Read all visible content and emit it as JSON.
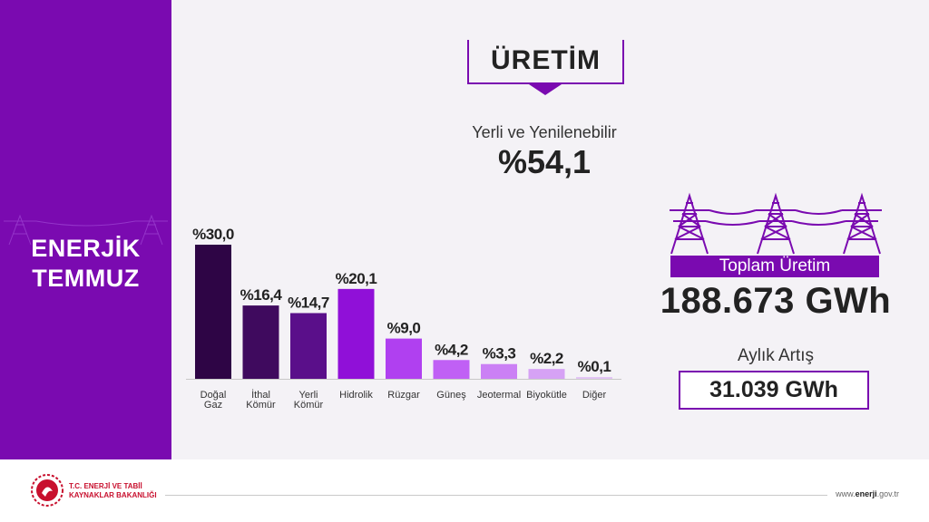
{
  "sidebar": {
    "title_line1": "ENERJİK",
    "title_line2": "TEMMUZ"
  },
  "header": {
    "title": "ÜRETİM"
  },
  "share": {
    "label": "Yerli ve Yenilenebilir",
    "value": "%54,1"
  },
  "total": {
    "label": "Toplam Üretim",
    "value": "188.673 GWh"
  },
  "increase": {
    "label": "Aylık Artış",
    "value": "31.039 GWh"
  },
  "footer": {
    "ministry_line1": "T.C. ENERJİ VE TABİİ",
    "ministry_line2": "KAYNAKLAR BAKANLIĞI",
    "url_prefix": "www.",
    "url_bold": "enerji",
    "url_suffix": ".gov.tr"
  },
  "colors": {
    "accent": "#7a0ab0",
    "ministry_red": "#c8102e"
  },
  "chart_data": {
    "type": "bar",
    "categories": [
      [
        "Doğal",
        "Gaz"
      ],
      [
        "İthal",
        "Kömür"
      ],
      [
        "Yerli",
        "Kömür"
      ],
      [
        "Hidrolik"
      ],
      [
        "Rüzgar"
      ],
      [
        "Güneş"
      ],
      [
        "Jeotermal"
      ],
      [
        "Biyokütle"
      ],
      [
        "Diğer"
      ]
    ],
    "values": [
      30.0,
      16.4,
      14.7,
      20.1,
      9.0,
      4.2,
      3.3,
      2.2,
      0.1
    ],
    "value_labels": [
      "%30,0",
      "%16,4",
      "%14,7",
      "%20,1",
      "%9,0",
      "%4,2",
      "%3,3",
      "%2,2",
      "%0,1"
    ],
    "bar_colors": [
      "#2e0545",
      "#3f0a5e",
      "#5a0f8a",
      "#9010d8",
      "#b040f0",
      "#c060f5",
      "#cb80f5",
      "#d6a2f5",
      "#e3c5f5"
    ],
    "ylim": [
      0,
      30
    ],
    "grid": false,
    "legend": "none"
  }
}
